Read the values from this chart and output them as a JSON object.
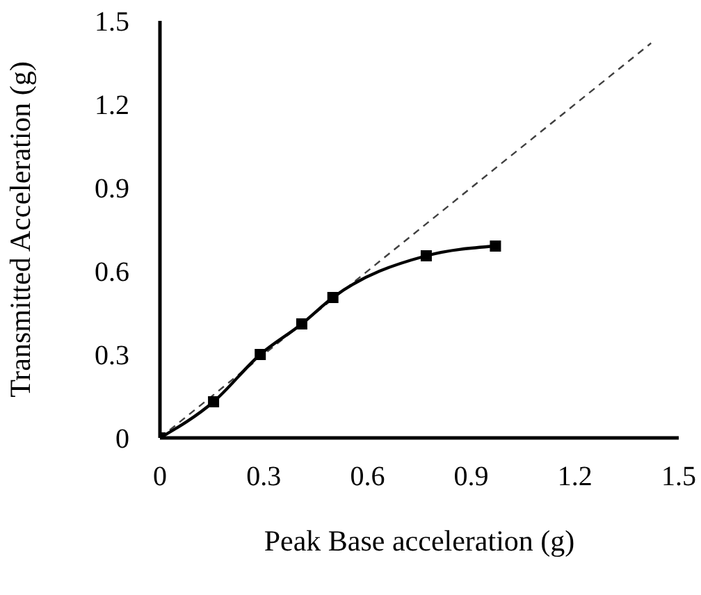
{
  "chart_data": {
    "type": "line",
    "xlabel": "Peak Base acceleration (g)",
    "ylabel": "Transmitted Acceleration (g)",
    "xlim": [
      0,
      1.5
    ],
    "xticks": [
      0,
      0.3,
      0.6,
      0.9,
      1.2,
      1.5
    ],
    "ylim": [
      0,
      1.5
    ],
    "yticks": [
      0,
      0.3,
      0.6,
      0.9,
      1.2,
      1.5
    ],
    "grid": false,
    "series": [
      {
        "color": "#404040",
        "line_style": "dashed",
        "marker": "none",
        "x": [
          0,
          1.42
        ],
        "values": [
          0,
          1.42
        ]
      },
      {
        "color": "#000000",
        "line_style": "solid",
        "marker": "square",
        "x": [
          0,
          0.155,
          0.29,
          0.41,
          0.5,
          0.77,
          0.97
        ],
        "values": [
          0,
          0.13,
          0.3,
          0.41,
          0.505,
          0.655,
          0.69
        ]
      }
    ]
  }
}
